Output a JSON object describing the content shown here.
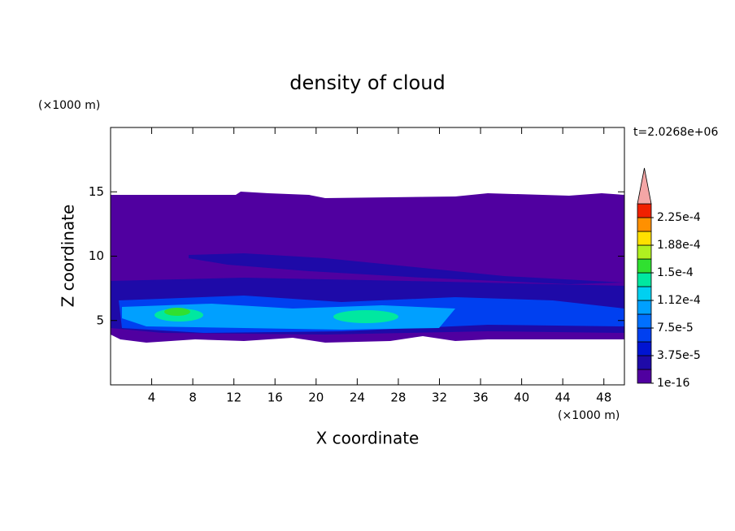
{
  "chart_data": {
    "type": "contour",
    "title": "density of cloud",
    "x_label": "X coordinate",
    "y_label": "Z coordinate",
    "x_unit": "(×1000 m)",
    "y_unit": "(×1000 m)",
    "annotation": "t=2.0268e+06",
    "xlim": [
      0,
      50
    ],
    "xticks": [
      4,
      8,
      12,
      16,
      20,
      24,
      28,
      32,
      36,
      40,
      44,
      48
    ],
    "ylim": [
      0,
      20
    ],
    "yticks": [
      5,
      10,
      15
    ],
    "colorbar": {
      "clim": [
        1e-16,
        0.00024375
      ],
      "levels": [
        1e-16,
        1.875e-05,
        3.75e-05,
        5.625e-05,
        7.5e-05,
        9.375e-05,
        0.0001125,
        0.00013125,
        0.00015,
        0.00016875,
        0.0001875,
        0.00020625,
        0.000225
      ],
      "colors": [
        "#5000a0",
        "#1e0aa8",
        "#0014d2",
        "#0040f0",
        "#0070ff",
        "#00a0ff",
        "#00d0f0",
        "#00e8a0",
        "#30e030",
        "#b0f020",
        "#ffe000",
        "#ff9000",
        "#f02000"
      ],
      "extend_color": "#f4a6a6",
      "ticks": [
        {
          "value": 1e-16,
          "label": "1e-16"
        },
        {
          "value": 3.75e-05,
          "label": "3.75e-5"
        },
        {
          "value": 7.5e-05,
          "label": "7.5e-5"
        },
        {
          "value": 0.0001125,
          "label": "1.12e-4"
        },
        {
          "value": 0.00015,
          "label": "1.5e-4"
        },
        {
          "value": 0.0001875,
          "label": "1.88e-4"
        },
        {
          "value": 0.000225,
          "label": "2.25e-4"
        }
      ]
    }
  }
}
